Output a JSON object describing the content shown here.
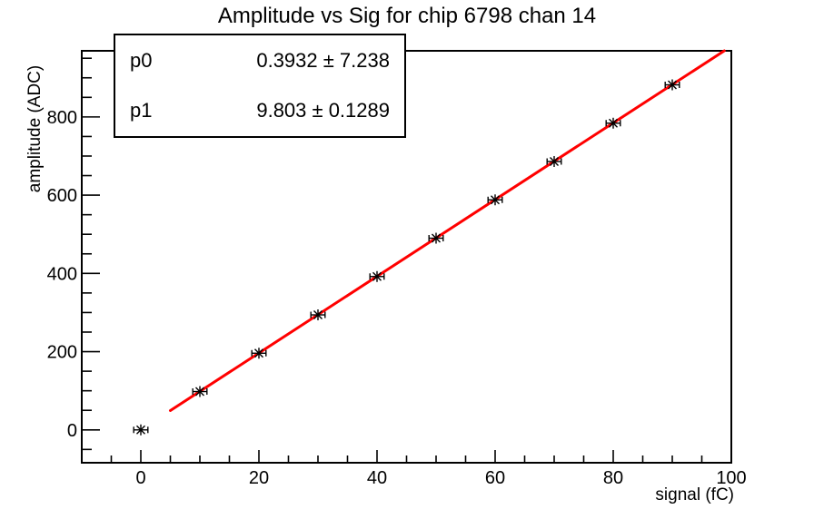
{
  "title": "Amplitude vs Sig for chip 6798 chan 14",
  "stats_box": {
    "rows": [
      {
        "label": "p0",
        "value": "0.3932 ± 7.238"
      },
      {
        "label": "p1",
        "value": "9.803 ± 0.1289"
      }
    ]
  },
  "chart_data": {
    "type": "scatter",
    "title": "Amplitude vs Sig for chip 6798 chan 14",
    "xlabel": "signal (fC)",
    "ylabel": "amplitude (ADC)",
    "xlim": [
      -10,
      100
    ],
    "ylim": [
      -84,
      969
    ],
    "x_major_ticks": [
      0,
      20,
      40,
      60,
      80,
      100
    ],
    "x_minor_step": 5,
    "y_major_ticks": [
      0,
      200,
      400,
      600,
      800
    ],
    "y_minor_step": 50,
    "grid": false,
    "legend": null,
    "marker": "asterisk-with-x-error-bars",
    "marker_color": "#000000",
    "frame_color": "#000000",
    "x_error": 1.2,
    "points": [
      {
        "x": 0,
        "y": 0
      },
      {
        "x": 10,
        "y": 98
      },
      {
        "x": 20,
        "y": 196
      },
      {
        "x": 30,
        "y": 294
      },
      {
        "x": 40,
        "y": 392
      },
      {
        "x": 50,
        "y": 490
      },
      {
        "x": 60,
        "y": 588
      },
      {
        "x": 70,
        "y": 686
      },
      {
        "x": 80,
        "y": 784
      },
      {
        "x": 90,
        "y": 882
      }
    ],
    "fit_line": {
      "type": "linear",
      "p0": 0.3932,
      "p1": 9.803,
      "x_start": 5,
      "x_end": 100,
      "color": "#ff0000"
    }
  }
}
